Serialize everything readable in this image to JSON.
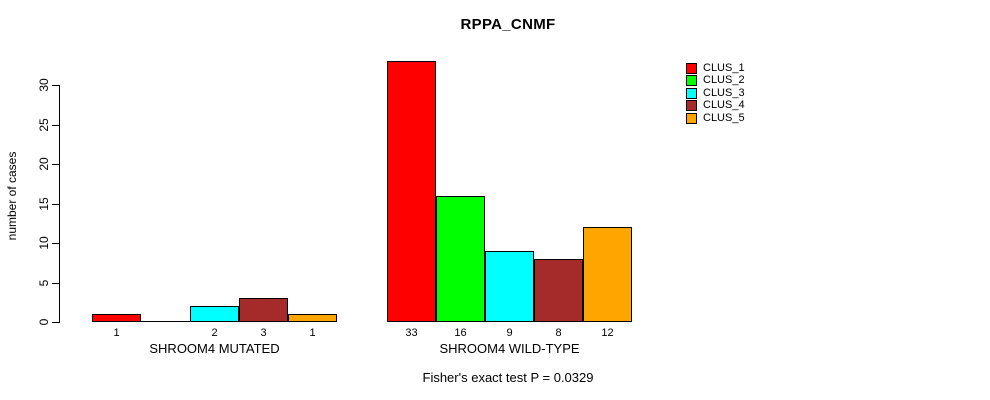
{
  "chart_data": {
    "type": "bar",
    "title": "RPPA_CNMF",
    "ylabel": "number of cases",
    "xlabel": "",
    "yticks": [
      0,
      5,
      10,
      15,
      20,
      25,
      30
    ],
    "ylim": [
      0,
      33
    ],
    "grid": false,
    "legend_position": "top-right",
    "categories": [
      "SHROOM4 MUTATED",
      "SHROOM4 WILD-TYPE"
    ],
    "series": [
      {
        "name": "CLUS_1",
        "color": "#ff0000",
        "values": [
          1,
          33
        ]
      },
      {
        "name": "CLUS_2",
        "color": "#00ff00",
        "values": [
          0,
          16
        ]
      },
      {
        "name": "CLUS_3",
        "color": "#00ffff",
        "values": [
          2,
          9
        ]
      },
      {
        "name": "CLUS_4",
        "color": "#a52a2a",
        "values": [
          3,
          8
        ]
      },
      {
        "name": "CLUS_5",
        "color": "#ffa500",
        "values": [
          1,
          12
        ]
      }
    ],
    "bar_value_labels": [
      [
        "1",
        "",
        "2",
        "3",
        "1"
      ],
      [
        "33",
        "16",
        "9",
        "8",
        "12"
      ]
    ],
    "caption": "Fisher's exact test P = 0.0329",
    "axis_color": "#000000",
    "background_color": "#ffffff"
  }
}
